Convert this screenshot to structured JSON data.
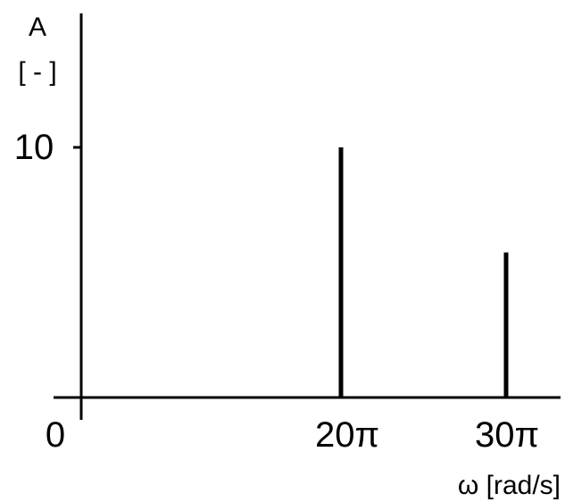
{
  "chart_data": {
    "type": "bar",
    "x": [
      "20π",
      "30π"
    ],
    "values": [
      10,
      5.8
    ],
    "ylabel_line1": "A",
    "ylabel_line2": "[ - ]",
    "xlabel": "ω [rad/s]",
    "xtick_labels": [
      "0",
      "20π",
      "30π"
    ],
    "ytick_labels": [
      "10"
    ],
    "yticks": [
      10
    ],
    "ylim": [
      0,
      10.5
    ],
    "grid": false,
    "legend": "none",
    "colors": {
      "axis": "#000000",
      "bars": "#000000"
    }
  }
}
